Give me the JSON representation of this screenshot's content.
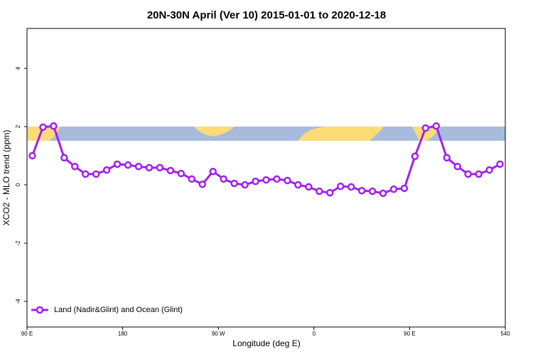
{
  "chart_data": {
    "type": "line",
    "title": "20N-30N April (Ver 10)   2015-01-01 to 2020-12-18",
    "x_label": "Longitude (deg E)",
    "y_label": "XCO2 - MLO trend (ppm)",
    "x": [
      95,
      105,
      115,
      125,
      135,
      145,
      155,
      165,
      175,
      185,
      195,
      205,
      215,
      225,
      235,
      245,
      255,
      265,
      275,
      285,
      295,
      305,
      315,
      325,
      335,
      345,
      355,
      365,
      375,
      385,
      395,
      405,
      415,
      425,
      435,
      445,
      455,
      465,
      475,
      485,
      495,
      505,
      515,
      525,
      535
    ],
    "series": [
      {
        "name": "Land (Nadir&Glint) and Ocean (Glint)",
        "color": "#a020f0",
        "values": [
          1.0,
          1.98,
          2.02,
          0.93,
          0.63,
          0.37,
          0.37,
          0.51,
          0.71,
          0.68,
          0.63,
          0.59,
          0.59,
          0.49,
          0.39,
          0.2,
          0.02,
          0.46,
          0.2,
          0.05,
          0.0,
          0.12,
          0.17,
          0.2,
          0.15,
          0.0,
          -0.07,
          -0.22,
          -0.27,
          -0.05,
          -0.07,
          -0.2,
          -0.22,
          -0.29,
          -0.15,
          -0.12,
          0.98,
          1.95,
          2.02,
          0.93,
          0.63,
          0.37,
          0.37,
          0.51,
          0.71
        ]
      }
    ],
    "xlim": [
      90,
      540
    ],
    "xticks": [
      {
        "value": 90,
        "label": "90 E"
      },
      180,
      {
        "value": 270,
        "label": "90 W"
      },
      {
        "value": 360,
        "label": "0"
      },
      {
        "value": 450,
        "label": "90 E"
      },
      540
    ],
    "ylim": [
      -4.88,
      5.37
    ],
    "yticks": [
      -4,
      -2,
      0,
      2,
      4
    ],
    "legend": "bottom-left"
  }
}
